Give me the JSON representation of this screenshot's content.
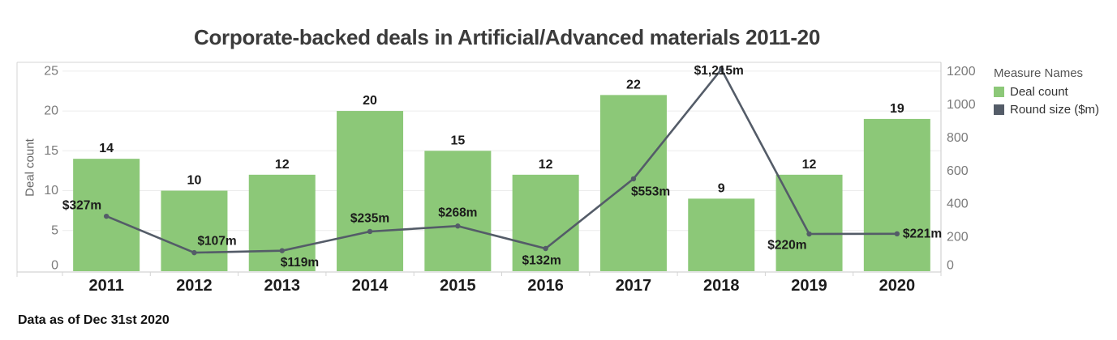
{
  "title": "Corporate-backed deals in Artificial/Advanced materials 2011-20",
  "footer": "Data as of Dec 31st 2020",
  "legend": {
    "title": "Measure Names",
    "position": "right",
    "items": [
      {
        "label": "Deal count",
        "color": "#8cc878"
      },
      {
        "label": "Round size ($m)",
        "color": "#545c68"
      }
    ]
  },
  "colors": {
    "bar": "#8cc878",
    "line": "#545c68",
    "data_label": "#1b1b1b",
    "axis_tick_text": "#7b7b7b",
    "axis_title_text": "#666666",
    "gridline": "#ececec",
    "border": "#d4d4d4",
    "category_text": "#1c1c1c"
  },
  "chart_data": {
    "type": "bar",
    "subtype": "bar+line dual axis",
    "title": "Corporate-backed deals in Artificial/Advanced materials 2011-20",
    "categories": [
      "2011",
      "2012",
      "2013",
      "2014",
      "2015",
      "2016",
      "2017",
      "2018",
      "2019",
      "2020"
    ],
    "series": [
      {
        "name": "Deal count",
        "type": "bar",
        "axis": "left",
        "values": [
          14,
          10,
          12,
          20,
          15,
          12,
          22,
          9,
          12,
          19
        ],
        "labels": [
          "14",
          "10",
          "12",
          "20",
          "15",
          "12",
          "22",
          "9",
          "12",
          "19"
        ]
      },
      {
        "name": "Round size ($m)",
        "type": "line",
        "axis": "right",
        "values": [
          327,
          107,
          119,
          235,
          268,
          132,
          553,
          1215,
          220,
          221
        ],
        "labels": [
          "$327m",
          "$107m",
          "$119m",
          "$235m",
          "$268m",
          "$132m",
          "$553m",
          "$1,215m",
          "$220m",
          "$221m"
        ],
        "label_offsets": [
          {
            "anchor": "end",
            "dx": -6,
            "dy": -13
          },
          {
            "anchor": "start",
            "dx": 4,
            "dy": -14
          },
          {
            "anchor": "start",
            "dx": -2,
            "dy": 15
          },
          {
            "anchor": "middle",
            "dx": 0,
            "dy": -16
          },
          {
            "anchor": "middle",
            "dx": 0,
            "dy": -16
          },
          {
            "anchor": "middle",
            "dx": -5,
            "dy": 15
          },
          {
            "anchor": "start",
            "dx": -3,
            "dy": 16
          },
          {
            "anchor": "middle",
            "dx": -3,
            "dy": 2
          },
          {
            "anchor": "end",
            "dx": -3,
            "dy": 14
          },
          {
            "anchor": "start",
            "dx": 7,
            "dy": 0
          }
        ]
      }
    ],
    "left_axis": {
      "label": "Deal count",
      "ticks": [
        0,
        5,
        10,
        15,
        20,
        25
      ],
      "range": [
        0,
        26.1
      ]
    },
    "right_axis": {
      "label": "",
      "ticks": [
        0,
        200,
        400,
        600,
        800,
        1000,
        1200
      ],
      "range": [
        0,
        1257
      ]
    },
    "grid": true,
    "legend_position": "right"
  }
}
